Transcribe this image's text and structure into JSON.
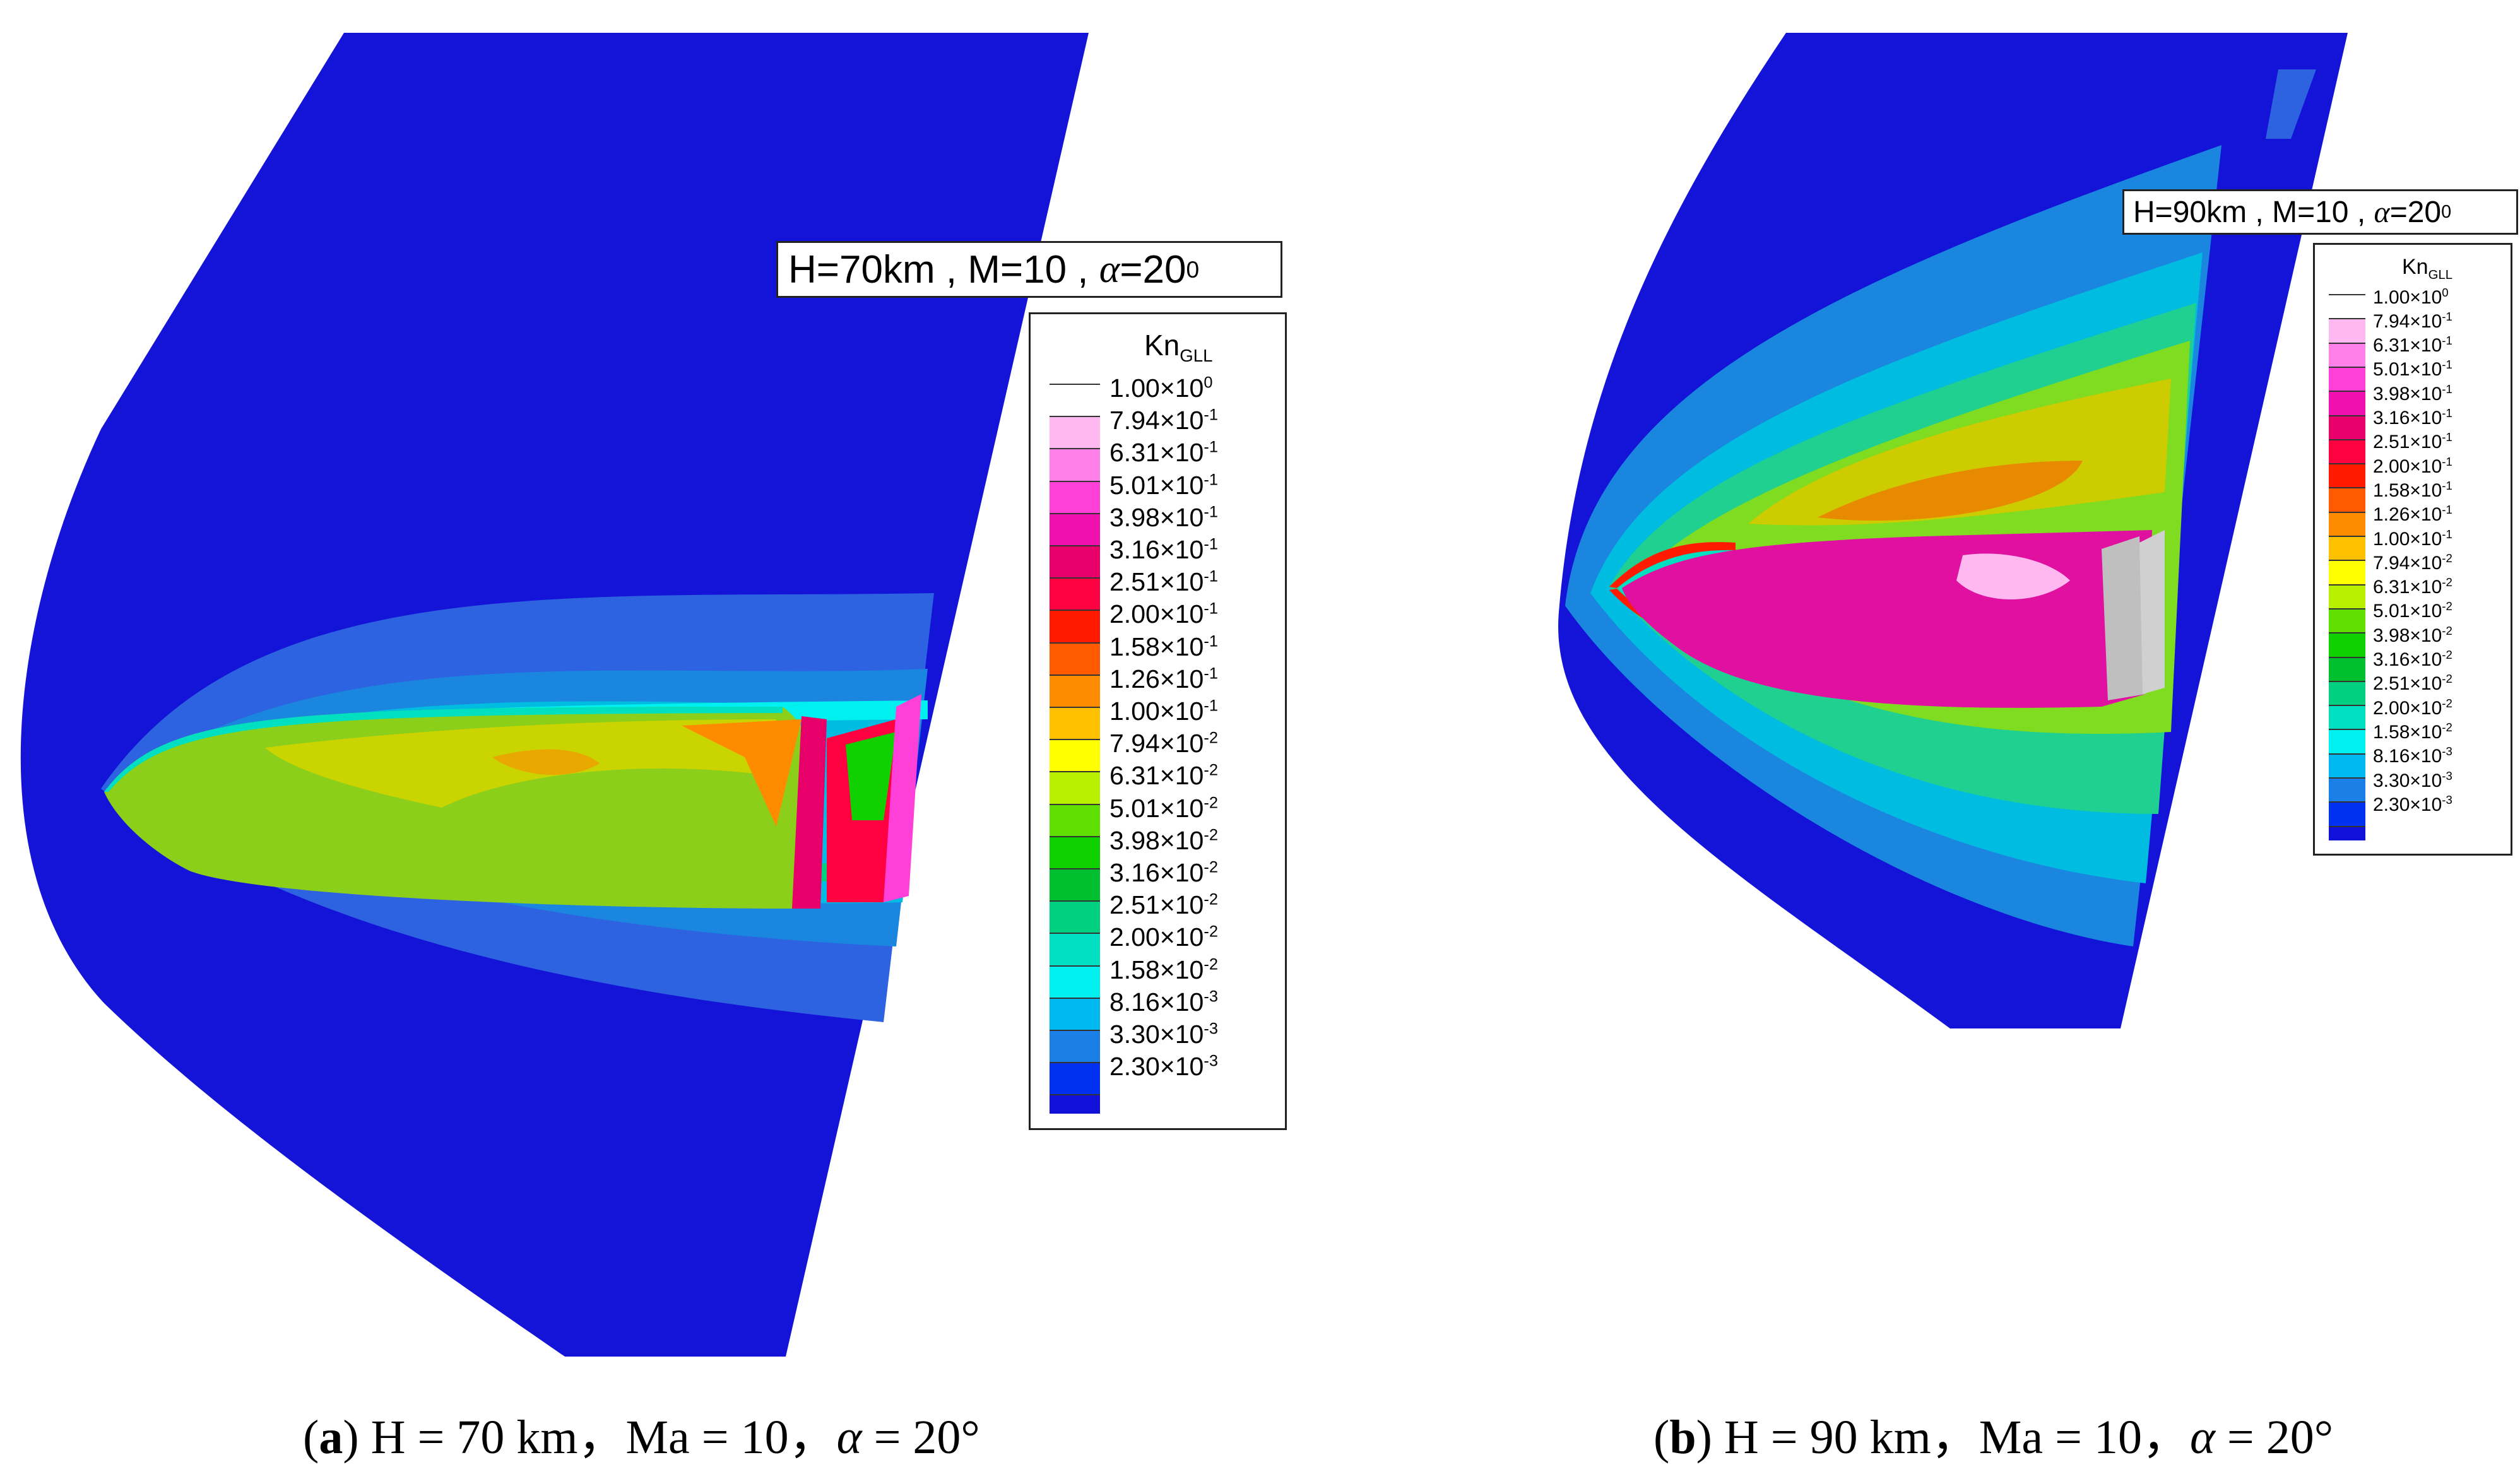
{
  "panel_a": {
    "condition": {
      "prefix": "H=70km , M=10 , ",
      "alpha": "α",
      "eq": "=20",
      "sup": "0"
    },
    "legend_title": {
      "main": "Kn",
      "sub": "GLL"
    },
    "caption": {
      "open": "(",
      "letter": "a",
      "close": ")",
      "text1": " H = 70 km，Ma = 10，",
      "alpha": "α",
      "text2": " = 20°"
    }
  },
  "panel_b": {
    "condition": {
      "prefix": "H=90km , M=10 , ",
      "alpha": "α",
      "eq": "=20",
      "sup": "0"
    },
    "legend_title": {
      "main": "Kn",
      "sub": "GLL"
    },
    "caption": {
      "open": "(",
      "letter": "b",
      "close": ")",
      "text1": " H = 90 km，Ma = 10，",
      "alpha": "α",
      "text2": " = 20°"
    }
  },
  "legend_levels": [
    {
      "mant": "1.00×10",
      "exp": "0",
      "color": "#ffffff"
    },
    {
      "mant": "7.94×10",
      "exp": "-1",
      "color": "#ffb8f0"
    },
    {
      "mant": "6.31×10",
      "exp": "-1",
      "color": "#ff80e8"
    },
    {
      "mant": "5.01×10",
      "exp": "-1",
      "color": "#ff40d8"
    },
    {
      "mant": "3.98×10",
      "exp": "-1",
      "color": "#f010b0"
    },
    {
      "mant": "3.16×10",
      "exp": "-1",
      "color": "#e8006a"
    },
    {
      "mant": "2.51×10",
      "exp": "-1",
      "color": "#ff0040"
    },
    {
      "mant": "2.00×10",
      "exp": "-1",
      "color": "#ff1a00"
    },
    {
      "mant": "1.58×10",
      "exp": "-1",
      "color": "#ff5a00"
    },
    {
      "mant": "1.26×10",
      "exp": "-1",
      "color": "#ff8c00"
    },
    {
      "mant": "1.00×10",
      "exp": "-1",
      "color": "#ffc000"
    },
    {
      "mant": "7.94×10",
      "exp": "-2",
      "color": "#ffff00"
    },
    {
      "mant": "6.31×10",
      "exp": "-2",
      "color": "#b8f000"
    },
    {
      "mant": "5.01×10",
      "exp": "-2",
      "color": "#60e000"
    },
    {
      "mant": "3.98×10",
      "exp": "-2",
      "color": "#10d000"
    },
    {
      "mant": "3.16×10",
      "exp": "-2",
      "color": "#00c030"
    },
    {
      "mant": "2.51×10",
      "exp": "-2",
      "color": "#00d080"
    },
    {
      "mant": "2.00×10",
      "exp": "-2",
      "color": "#00e0c0"
    },
    {
      "mant": "1.58×10",
      "exp": "-2",
      "color": "#00f0f0"
    },
    {
      "mant": "8.16×10",
      "exp": "-3",
      "color": "#00b8f0"
    },
    {
      "mant": "3.30×10",
      "exp": "-3",
      "color": "#1a80e8"
    },
    {
      "mant": "2.30×10",
      "exp": "-3",
      "color": "#0030f0"
    }
  ],
  "bottom_color": "#1010d8"
}
